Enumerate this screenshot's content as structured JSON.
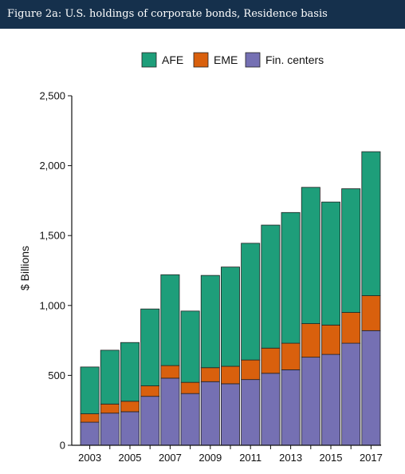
{
  "header": {
    "title": "Figure 2a: U.S. holdings of corporate bonds, Residence basis"
  },
  "colors": {
    "AFE": "#1e9e7a",
    "EME": "#d9600d",
    "Fin. centers": "#7570b3",
    "header_bg": "#15304c"
  },
  "chart_data": {
    "type": "bar",
    "stacked": true,
    "title": "",
    "xlabel": "",
    "ylabel": "$ Billions",
    "ylim": [
      0,
      2500
    ],
    "yticks": [
      0,
      500,
      1000,
      1500,
      2000,
      2500
    ],
    "ytick_labels": [
      "0",
      "500",
      "1,000",
      "1,500",
      "2,000",
      "2,500"
    ],
    "categories": [
      "2003",
      "2004",
      "2005",
      "2006",
      "2007",
      "2008",
      "2009",
      "2010",
      "2011",
      "2012",
      "2013",
      "2014",
      "2015",
      "2016",
      "2017"
    ],
    "xtick_labels": [
      "2003",
      "",
      "2005",
      "",
      "2007",
      "",
      "2009",
      "",
      "2011",
      "",
      "2013",
      "",
      "2015",
      "",
      "2017"
    ],
    "legend_position": "top-center",
    "grid": false,
    "series": [
      {
        "name": "Fin. centers",
        "color": "#7570b3",
        "values": [
          165,
          230,
          240,
          350,
          480,
          370,
          455,
          440,
          470,
          515,
          540,
          630,
          650,
          730,
          820
        ]
      },
      {
        "name": "EME",
        "color": "#d9600d",
        "values": [
          60,
          65,
          75,
          75,
          90,
          80,
          100,
          125,
          140,
          180,
          190,
          240,
          210,
          220,
          250
        ]
      },
      {
        "name": "AFE",
        "color": "#1e9e7a",
        "values": [
          335,
          385,
          420,
          550,
          650,
          510,
          660,
          710,
          835,
          880,
          935,
          975,
          880,
          885,
          1030
        ]
      }
    ],
    "legend_order": [
      "AFE",
      "EME",
      "Fin. centers"
    ]
  }
}
